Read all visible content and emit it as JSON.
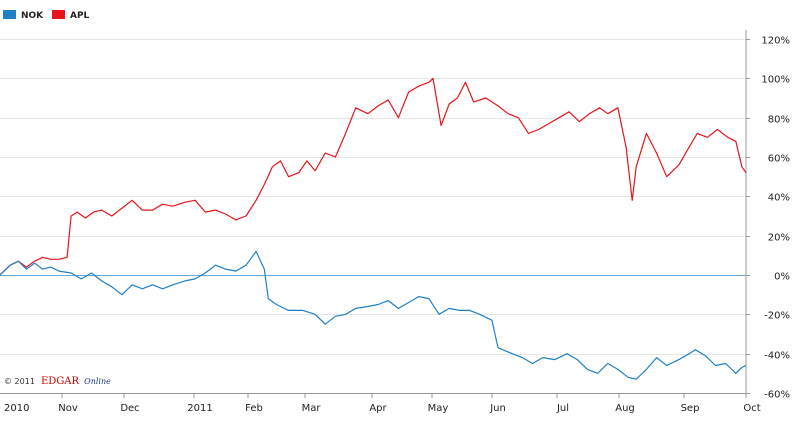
{
  "chart_data": {
    "type": "line",
    "title": "",
    "xlabel": "",
    "ylabel": "",
    "x_ticks": [
      "2010",
      "Nov",
      "Dec",
      "2011",
      "Feb",
      "Mar",
      "Apr",
      "May",
      "Jun",
      "Jul",
      "Aug",
      "Sep",
      "Oct"
    ],
    "y_ticks": [
      "120%",
      "100%",
      "80%",
      "60%",
      "40%",
      "20%",
      "0%",
      "-20%",
      "-40%",
      "-60%"
    ],
    "ylim": [
      -60,
      120
    ],
    "x_range": [
      "2010-10-01",
      "2011-10-03"
    ],
    "y_axis_side": "right",
    "grid": true,
    "legend_position": "top-left",
    "series": [
      {
        "name": "NOK",
        "color": "#1f80c8",
        "points": [
          [
            "2010-10-01",
            0
          ],
          [
            "2010-10-06",
            5
          ],
          [
            "2010-10-10",
            7
          ],
          [
            "2010-10-14",
            3
          ],
          [
            "2010-10-18",
            6
          ],
          [
            "2010-10-22",
            3
          ],
          [
            "2010-10-26",
            4
          ],
          [
            "2010-10-30",
            2
          ],
          [
            "2010-11-05",
            1
          ],
          [
            "2010-11-10",
            -2
          ],
          [
            "2010-11-15",
            1
          ],
          [
            "2010-11-20",
            -3
          ],
          [
            "2010-11-25",
            -6
          ],
          [
            "2010-11-30",
            -10
          ],
          [
            "2010-12-05",
            -5
          ],
          [
            "2010-12-10",
            -7
          ],
          [
            "2010-12-15",
            -5
          ],
          [
            "2010-12-20",
            -7
          ],
          [
            "2010-12-25",
            -5
          ],
          [
            "2010-12-31",
            -3
          ],
          [
            "2011-01-05",
            -2
          ],
          [
            "2011-01-10",
            1
          ],
          [
            "2011-01-15",
            5
          ],
          [
            "2011-01-20",
            3
          ],
          [
            "2011-01-25",
            2
          ],
          [
            "2011-01-30",
            5
          ],
          [
            "2011-02-04",
            12
          ],
          [
            "2011-02-08",
            3
          ],
          [
            "2011-02-10",
            -12
          ],
          [
            "2011-02-14",
            -15
          ],
          [
            "2011-02-20",
            -18
          ],
          [
            "2011-02-27",
            -18
          ],
          [
            "2011-03-05",
            -20
          ],
          [
            "2011-03-10",
            -25
          ],
          [
            "2011-03-15",
            -21
          ],
          [
            "2011-03-20",
            -20
          ],
          [
            "2011-03-25",
            -17
          ],
          [
            "2011-03-31",
            -16
          ],
          [
            "2011-04-05",
            -15
          ],
          [
            "2011-04-10",
            -13
          ],
          [
            "2011-04-15",
            -17
          ],
          [
            "2011-04-20",
            -14
          ],
          [
            "2011-04-25",
            -11
          ],
          [
            "2011-04-30",
            -12
          ],
          [
            "2011-05-05",
            -20
          ],
          [
            "2011-05-10",
            -17
          ],
          [
            "2011-05-15",
            -18
          ],
          [
            "2011-05-20",
            -18
          ],
          [
            "2011-05-25",
            -20
          ],
          [
            "2011-05-31",
            -23
          ],
          [
            "2011-06-03",
            -37
          ],
          [
            "2011-06-10",
            -40
          ],
          [
            "2011-06-15",
            -42
          ],
          [
            "2011-06-20",
            -45
          ],
          [
            "2011-06-25",
            -42
          ],
          [
            "2011-07-01",
            -43
          ],
          [
            "2011-07-07",
            -40
          ],
          [
            "2011-07-12",
            -43
          ],
          [
            "2011-07-17",
            -48
          ],
          [
            "2011-07-22",
            -50
          ],
          [
            "2011-07-27",
            -45
          ],
          [
            "2011-08-01",
            -48
          ],
          [
            "2011-08-06",
            -52
          ],
          [
            "2011-08-10",
            -53
          ],
          [
            "2011-08-15",
            -48
          ],
          [
            "2011-08-20",
            -42
          ],
          [
            "2011-08-25",
            -46
          ],
          [
            "2011-08-31",
            -43
          ],
          [
            "2011-09-05",
            -40
          ],
          [
            "2011-09-08",
            -38
          ],
          [
            "2011-09-13",
            -41
          ],
          [
            "2011-09-18",
            -46
          ],
          [
            "2011-09-23",
            -45
          ],
          [
            "2011-09-28",
            -50
          ],
          [
            "2011-10-01",
            -47
          ],
          [
            "2011-10-03",
            -46
          ]
        ]
      },
      {
        "name": "APL",
        "color": "#e8141b",
        "points": [
          [
            "2010-10-01",
            0
          ],
          [
            "2010-10-06",
            5
          ],
          [
            "2010-10-10",
            7
          ],
          [
            "2010-10-14",
            4
          ],
          [
            "2010-10-18",
            7
          ],
          [
            "2010-10-22",
            9
          ],
          [
            "2010-10-26",
            8
          ],
          [
            "2010-10-30",
            8
          ],
          [
            "2010-11-03",
            9
          ],
          [
            "2010-11-05",
            30
          ],
          [
            "2010-11-08",
            32
          ],
          [
            "2010-11-12",
            29
          ],
          [
            "2010-11-16",
            32
          ],
          [
            "2010-11-20",
            33
          ],
          [
            "2010-11-25",
            30
          ],
          [
            "2010-11-30",
            34
          ],
          [
            "2010-12-05",
            38
          ],
          [
            "2010-12-10",
            33
          ],
          [
            "2010-12-15",
            33
          ],
          [
            "2010-12-20",
            36
          ],
          [
            "2010-12-25",
            35
          ],
          [
            "2010-12-31",
            37
          ],
          [
            "2011-01-05",
            38
          ],
          [
            "2011-01-10",
            32
          ],
          [
            "2011-01-15",
            33
          ],
          [
            "2011-01-20",
            31
          ],
          [
            "2011-01-25",
            28
          ],
          [
            "2011-01-30",
            30
          ],
          [
            "2011-02-04",
            38
          ],
          [
            "2011-02-08",
            46
          ],
          [
            "2011-02-12",
            55
          ],
          [
            "2011-02-16",
            58
          ],
          [
            "2011-02-20",
            50
          ],
          [
            "2011-02-25",
            52
          ],
          [
            "2011-03-01",
            58
          ],
          [
            "2011-03-05",
            53
          ],
          [
            "2011-03-10",
            62
          ],
          [
            "2011-03-15",
            60
          ],
          [
            "2011-03-20",
            72
          ],
          [
            "2011-03-25",
            85
          ],
          [
            "2011-03-31",
            82
          ],
          [
            "2011-04-05",
            86
          ],
          [
            "2011-04-10",
            89
          ],
          [
            "2011-04-15",
            80
          ],
          [
            "2011-04-20",
            93
          ],
          [
            "2011-04-25",
            96
          ],
          [
            "2011-04-30",
            98
          ],
          [
            "2011-05-02",
            100
          ],
          [
            "2011-05-06",
            76
          ],
          [
            "2011-05-10",
            87
          ],
          [
            "2011-05-14",
            90
          ],
          [
            "2011-05-18",
            98
          ],
          [
            "2011-05-22",
            88
          ],
          [
            "2011-05-28",
            90
          ],
          [
            "2011-06-03",
            86
          ],
          [
            "2011-06-08",
            82
          ],
          [
            "2011-06-13",
            80
          ],
          [
            "2011-06-18",
            72
          ],
          [
            "2011-06-23",
            74
          ],
          [
            "2011-06-28",
            77
          ],
          [
            "2011-07-03",
            80
          ],
          [
            "2011-07-08",
            83
          ],
          [
            "2011-07-13",
            78
          ],
          [
            "2011-07-18",
            82
          ],
          [
            "2011-07-23",
            85
          ],
          [
            "2011-07-27",
            82
          ],
          [
            "2011-08-01",
            85
          ],
          [
            "2011-08-05",
            65
          ],
          [
            "2011-08-08",
            38
          ],
          [
            "2011-08-10",
            55
          ],
          [
            "2011-08-15",
            72
          ],
          [
            "2011-08-20",
            62
          ],
          [
            "2011-08-25",
            50
          ],
          [
            "2011-08-31",
            56
          ],
          [
            "2011-09-05",
            65
          ],
          [
            "2011-09-09",
            72
          ],
          [
            "2011-09-14",
            70
          ],
          [
            "2011-09-19",
            74
          ],
          [
            "2011-09-24",
            70
          ],
          [
            "2011-09-28",
            68
          ],
          [
            "2011-10-01",
            55
          ],
          [
            "2011-10-03",
            52
          ]
        ]
      }
    ],
    "copyright_prefix": "© 2011",
    "copyright_brand": "EDGAR",
    "copyright_suffix": "Online"
  }
}
